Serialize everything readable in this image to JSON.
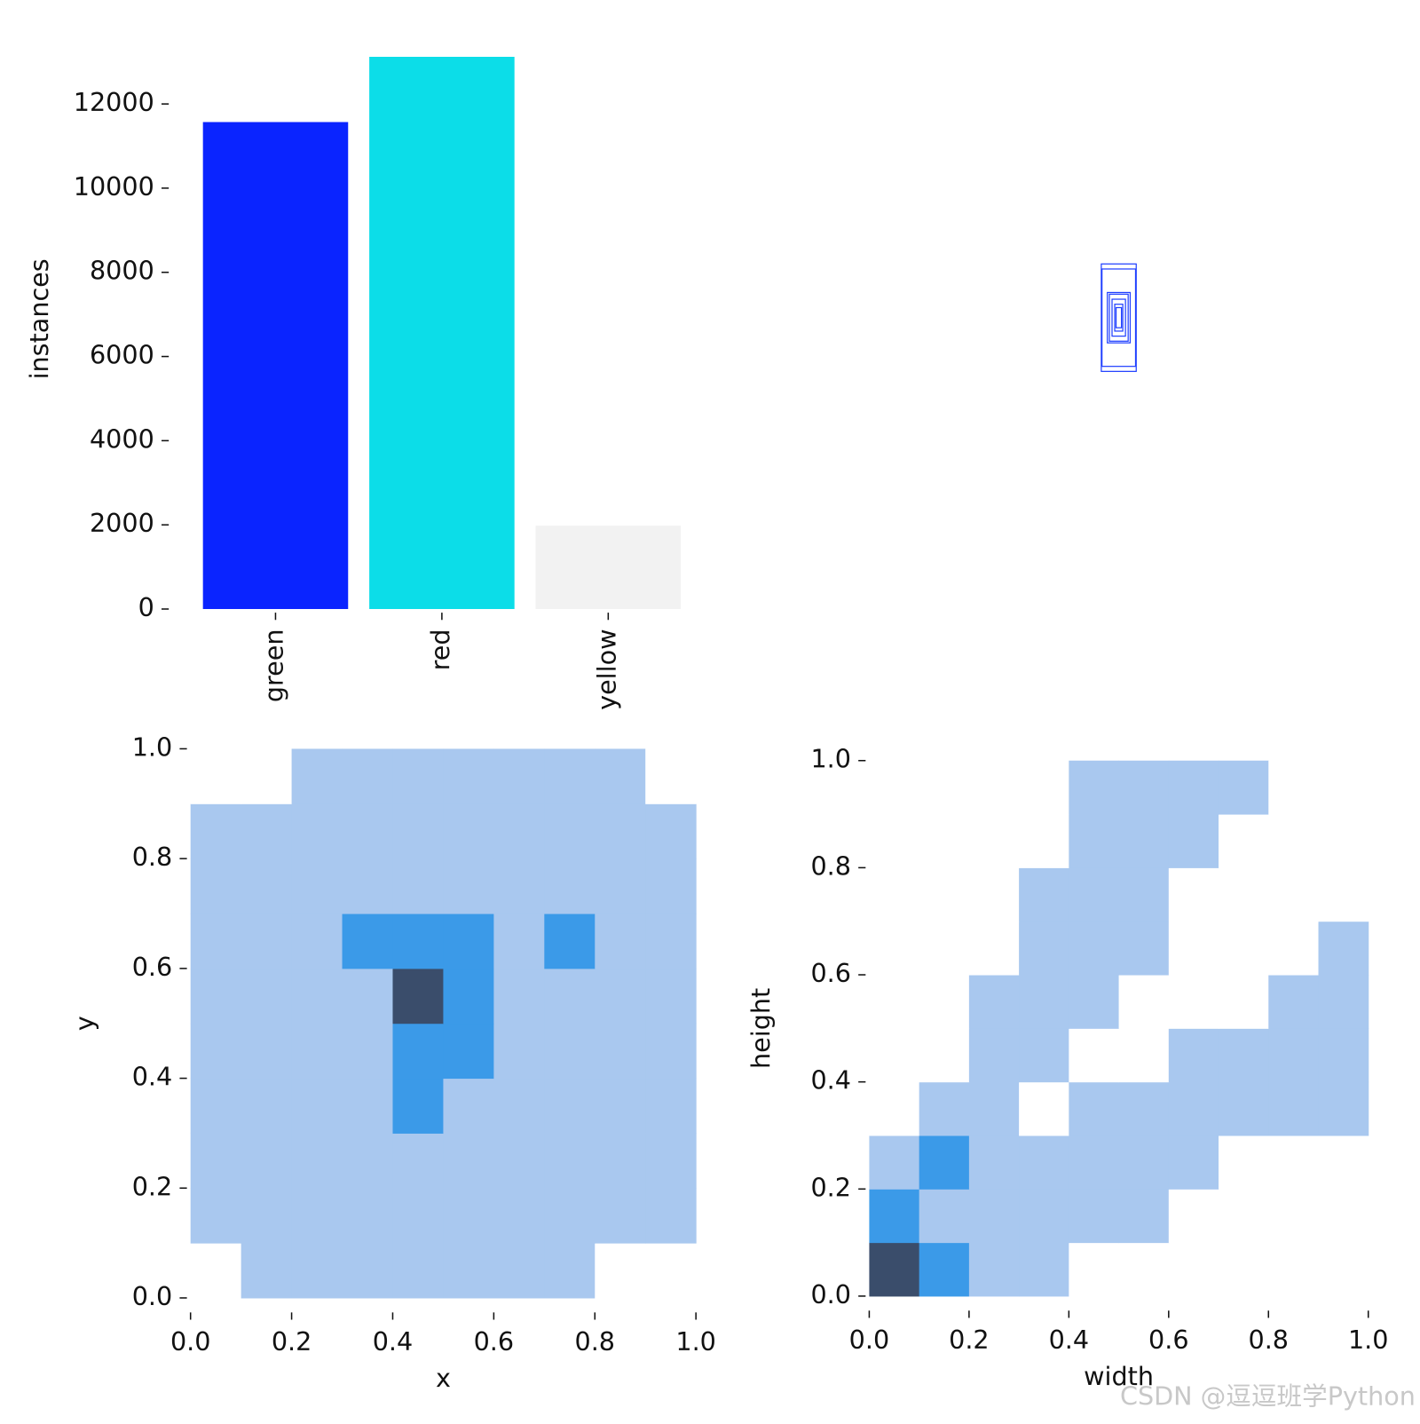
{
  "chart_data": [
    {
      "type": "bar",
      "y_label": "instances",
      "categories": [
        "green",
        "red",
        "yellow"
      ],
      "values": [
        11570,
        13120,
        1980
      ],
      "colors": [
        "#0a24ff",
        "#0cdde8",
        "#f2f2f2"
      ],
      "ylim": [
        0,
        13780
      ],
      "yticks": [
        0,
        2000,
        4000,
        6000,
        8000,
        10000,
        12000
      ]
    },
    {
      "type": "boxes",
      "color": "#1f3fff",
      "widths": [
        52,
        50,
        34,
        28,
        20,
        12,
        8
      ],
      "heights": [
        160,
        145,
        75,
        70,
        55,
        40,
        30
      ]
    },
    {
      "type": "heatmap",
      "x_label": "x",
      "y_label": "y",
      "xlim": [
        0,
        1
      ],
      "ylim": [
        0,
        1
      ],
      "xticks": [
        {
          "value": 0,
          "label": "0.0"
        },
        0.2,
        0.4,
        0.6,
        0.8,
        {
          "value": 1,
          "label": "1.0"
        }
      ],
      "yticks": [
        {
          "value": 0,
          "label": "0.0"
        },
        0.2,
        0.4,
        0.6,
        0.8,
        {
          "value": 1,
          "label": "1.0"
        }
      ],
      "palette": [
        "#ffffff",
        "#a9c8ef",
        "#3b9ae8",
        "#3a4d6b"
      ],
      "z": [
        [
          0,
          1,
          1,
          1,
          1,
          1,
          1,
          1,
          0,
          0
        ],
        [
          1,
          1,
          1,
          1,
          1,
          1,
          1,
          1,
          1,
          1
        ],
        [
          1,
          1,
          1,
          1,
          1,
          1,
          1,
          1,
          1,
          1
        ],
        [
          1,
          1,
          1,
          1,
          2,
          1,
          1,
          1,
          1,
          1
        ],
        [
          1,
          1,
          1,
          1,
          2,
          2,
          1,
          1,
          1,
          1
        ],
        [
          1,
          1,
          1,
          1,
          3,
          2,
          1,
          1,
          1,
          1
        ],
        [
          1,
          1,
          1,
          2,
          2,
          2,
          1,
          2,
          1,
          1
        ],
        [
          1,
          1,
          1,
          1,
          1,
          1,
          1,
          1,
          1,
          1
        ],
        [
          1,
          1,
          1,
          1,
          1,
          1,
          1,
          1,
          1,
          1
        ],
        [
          0,
          0,
          1,
          1,
          1,
          1,
          1,
          1,
          1,
          0
        ]
      ]
    },
    {
      "type": "heatmap",
      "x_label": "width",
      "y_label": "height",
      "xlim": [
        0,
        1
      ],
      "ylim": [
        0,
        1
      ],
      "xticks": [
        {
          "value": 0,
          "label": "0.0"
        },
        0.2,
        0.4,
        0.6,
        0.8,
        {
          "value": 1,
          "label": "1.0"
        }
      ],
      "yticks": [
        {
          "value": 0,
          "label": "0.0"
        },
        0.2,
        0.4,
        0.6,
        0.8,
        {
          "value": 1,
          "label": "1.0"
        }
      ],
      "palette": [
        "#ffffff",
        "#a9c8ef",
        "#3b9ae8",
        "#3a4d6b"
      ],
      "z": [
        [
          3,
          2,
          1,
          1,
          0,
          0,
          0,
          0,
          0,
          0
        ],
        [
          2,
          1,
          1,
          1,
          1,
          1,
          0,
          0,
          0,
          0
        ],
        [
          1,
          2,
          1,
          1,
          1,
          1,
          1,
          0,
          0,
          0
        ],
        [
          0,
          1,
          1,
          0,
          1,
          1,
          1,
          1,
          1,
          1
        ],
        [
          0,
          0,
          1,
          1,
          0,
          0,
          1,
          1,
          1,
          1
        ],
        [
          0,
          0,
          1,
          1,
          1,
          0,
          0,
          0,
          1,
          1
        ],
        [
          0,
          0,
          0,
          1,
          1,
          1,
          0,
          0,
          0,
          1
        ],
        [
          0,
          0,
          0,
          1,
          1,
          1,
          0,
          0,
          0,
          0
        ],
        [
          0,
          0,
          0,
          0,
          1,
          1,
          1,
          0,
          0,
          0
        ],
        [
          0,
          0,
          0,
          0,
          1,
          1,
          1,
          1,
          0,
          0
        ]
      ]
    }
  ],
  "watermark": "CSDN @逗逗班学Python"
}
